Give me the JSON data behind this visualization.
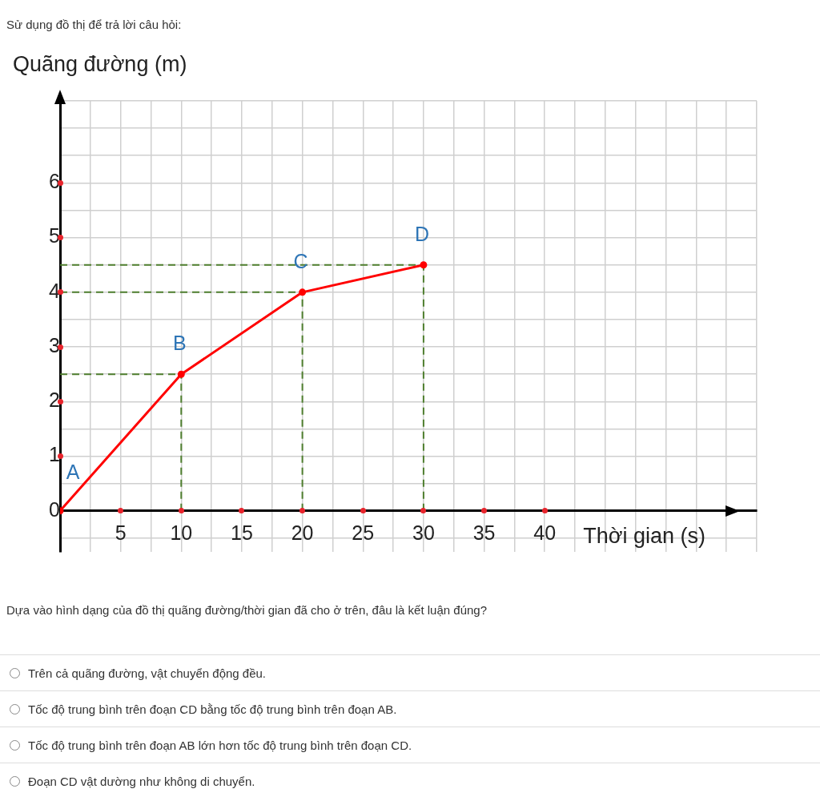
{
  "chart_data": {
    "type": "line",
    "title": "Sử dụng đồ thị để trả lời câu hỏi:",
    "xlabel": "Thời gian (s)",
    "ylabel": "Quãng đường (m)",
    "x": [
      0,
      10,
      20,
      30
    ],
    "series": [
      {
        "color": "#ff0000",
        "values": [
          0,
          2.5,
          4,
          4.5
        ]
      }
    ],
    "xlim": [
      0,
      57.5
    ],
    "ylim": [
      -0.75,
      7.5
    ],
    "xticks": [
      {
        "value": 0,
        "label": null
      },
      {
        "value": 2.5,
        "label": null
      },
      5,
      {
        "value": 7.5,
        "label": null
      },
      10,
      {
        "value": 12.5,
        "label": null
      },
      15,
      {
        "value": 17.5,
        "label": null
      },
      20,
      {
        "value": 22.5,
        "label": null
      },
      25,
      {
        "value": 27.5,
        "label": null
      },
      30,
      {
        "value": 32.5,
        "label": null
      },
      35,
      {
        "value": 37.5,
        "label": null
      },
      40,
      {
        "value": 42.5,
        "label": null
      },
      {
        "value": 45,
        "label": null
      },
      {
        "value": 47.5,
        "label": null
      },
      {
        "value": 50,
        "label": null
      },
      {
        "value": 52.5,
        "label": null
      },
      {
        "value": 55,
        "label": null
      },
      {
        "value": 57.5,
        "label": null
      }
    ],
    "yticks": [
      {
        "value": -0.5,
        "label": null
      },
      0,
      {
        "value": 0.5,
        "label": null
      },
      1,
      {
        "value": 1.5,
        "label": null
      },
      2,
      {
        "value": 2.5,
        "label": null
      },
      3,
      {
        "value": 3.5,
        "label": null
      },
      4,
      {
        "value": 4.5,
        "label": null
      },
      5,
      {
        "value": 5.5,
        "label": null
      },
      6,
      {
        "value": 6.5,
        "label": null
      },
      {
        "value": 7,
        "label": null
      },
      {
        "value": 7.5,
        "label": null
      }
    ],
    "grid": true,
    "legend": false,
    "marker": "circle",
    "line_style": "solid",
    "ref_lines": [
      {
        "axis": "x",
        "value": 10,
        "color": "#4f7f2f",
        "line_style": "dashed"
      },
      {
        "axis": "x",
        "value": 20,
        "color": "#4f7f2f",
        "line_style": "dashed"
      },
      {
        "axis": "x",
        "value": 30,
        "color": "#4f7f2f",
        "line_style": "dashed"
      },
      {
        "axis": "y",
        "value": 2.5,
        "color": "#4f7f2f",
        "line_style": "dashed"
      },
      {
        "axis": "y",
        "value": 4,
        "color": "#4f7f2f",
        "line_style": "dashed"
      },
      {
        "axis": "y",
        "value": 4.5,
        "color": "#4f7f2f",
        "line_style": "dashed"
      }
    ],
    "annotations": [
      {
        "text": "A",
        "x": 0,
        "y": 0
      },
      {
        "text": "B",
        "x": 10,
        "y": 2.5
      },
      {
        "text": "C",
        "x": 20,
        "y": 4
      },
      {
        "text": "D",
        "x": 30,
        "y": 4.5
      },
      "Dựa vào hình dạng của đồ thị quãng đường/thời gian đã cho ở trên, đâu là kết luận đúng?",
      "Trên cả quãng đường, vật chuyển động đều.",
      "Tốc độ trung bình trên đoạn CD bằng tốc độ trung bình trên đoạn AB.",
      "Tốc độ trung bình trên đoạn AB lớn hơn tốc độ trung bình trên đoạn CD.",
      "Đoạn CD vật dường như không di chuyển."
    ]
  }
}
